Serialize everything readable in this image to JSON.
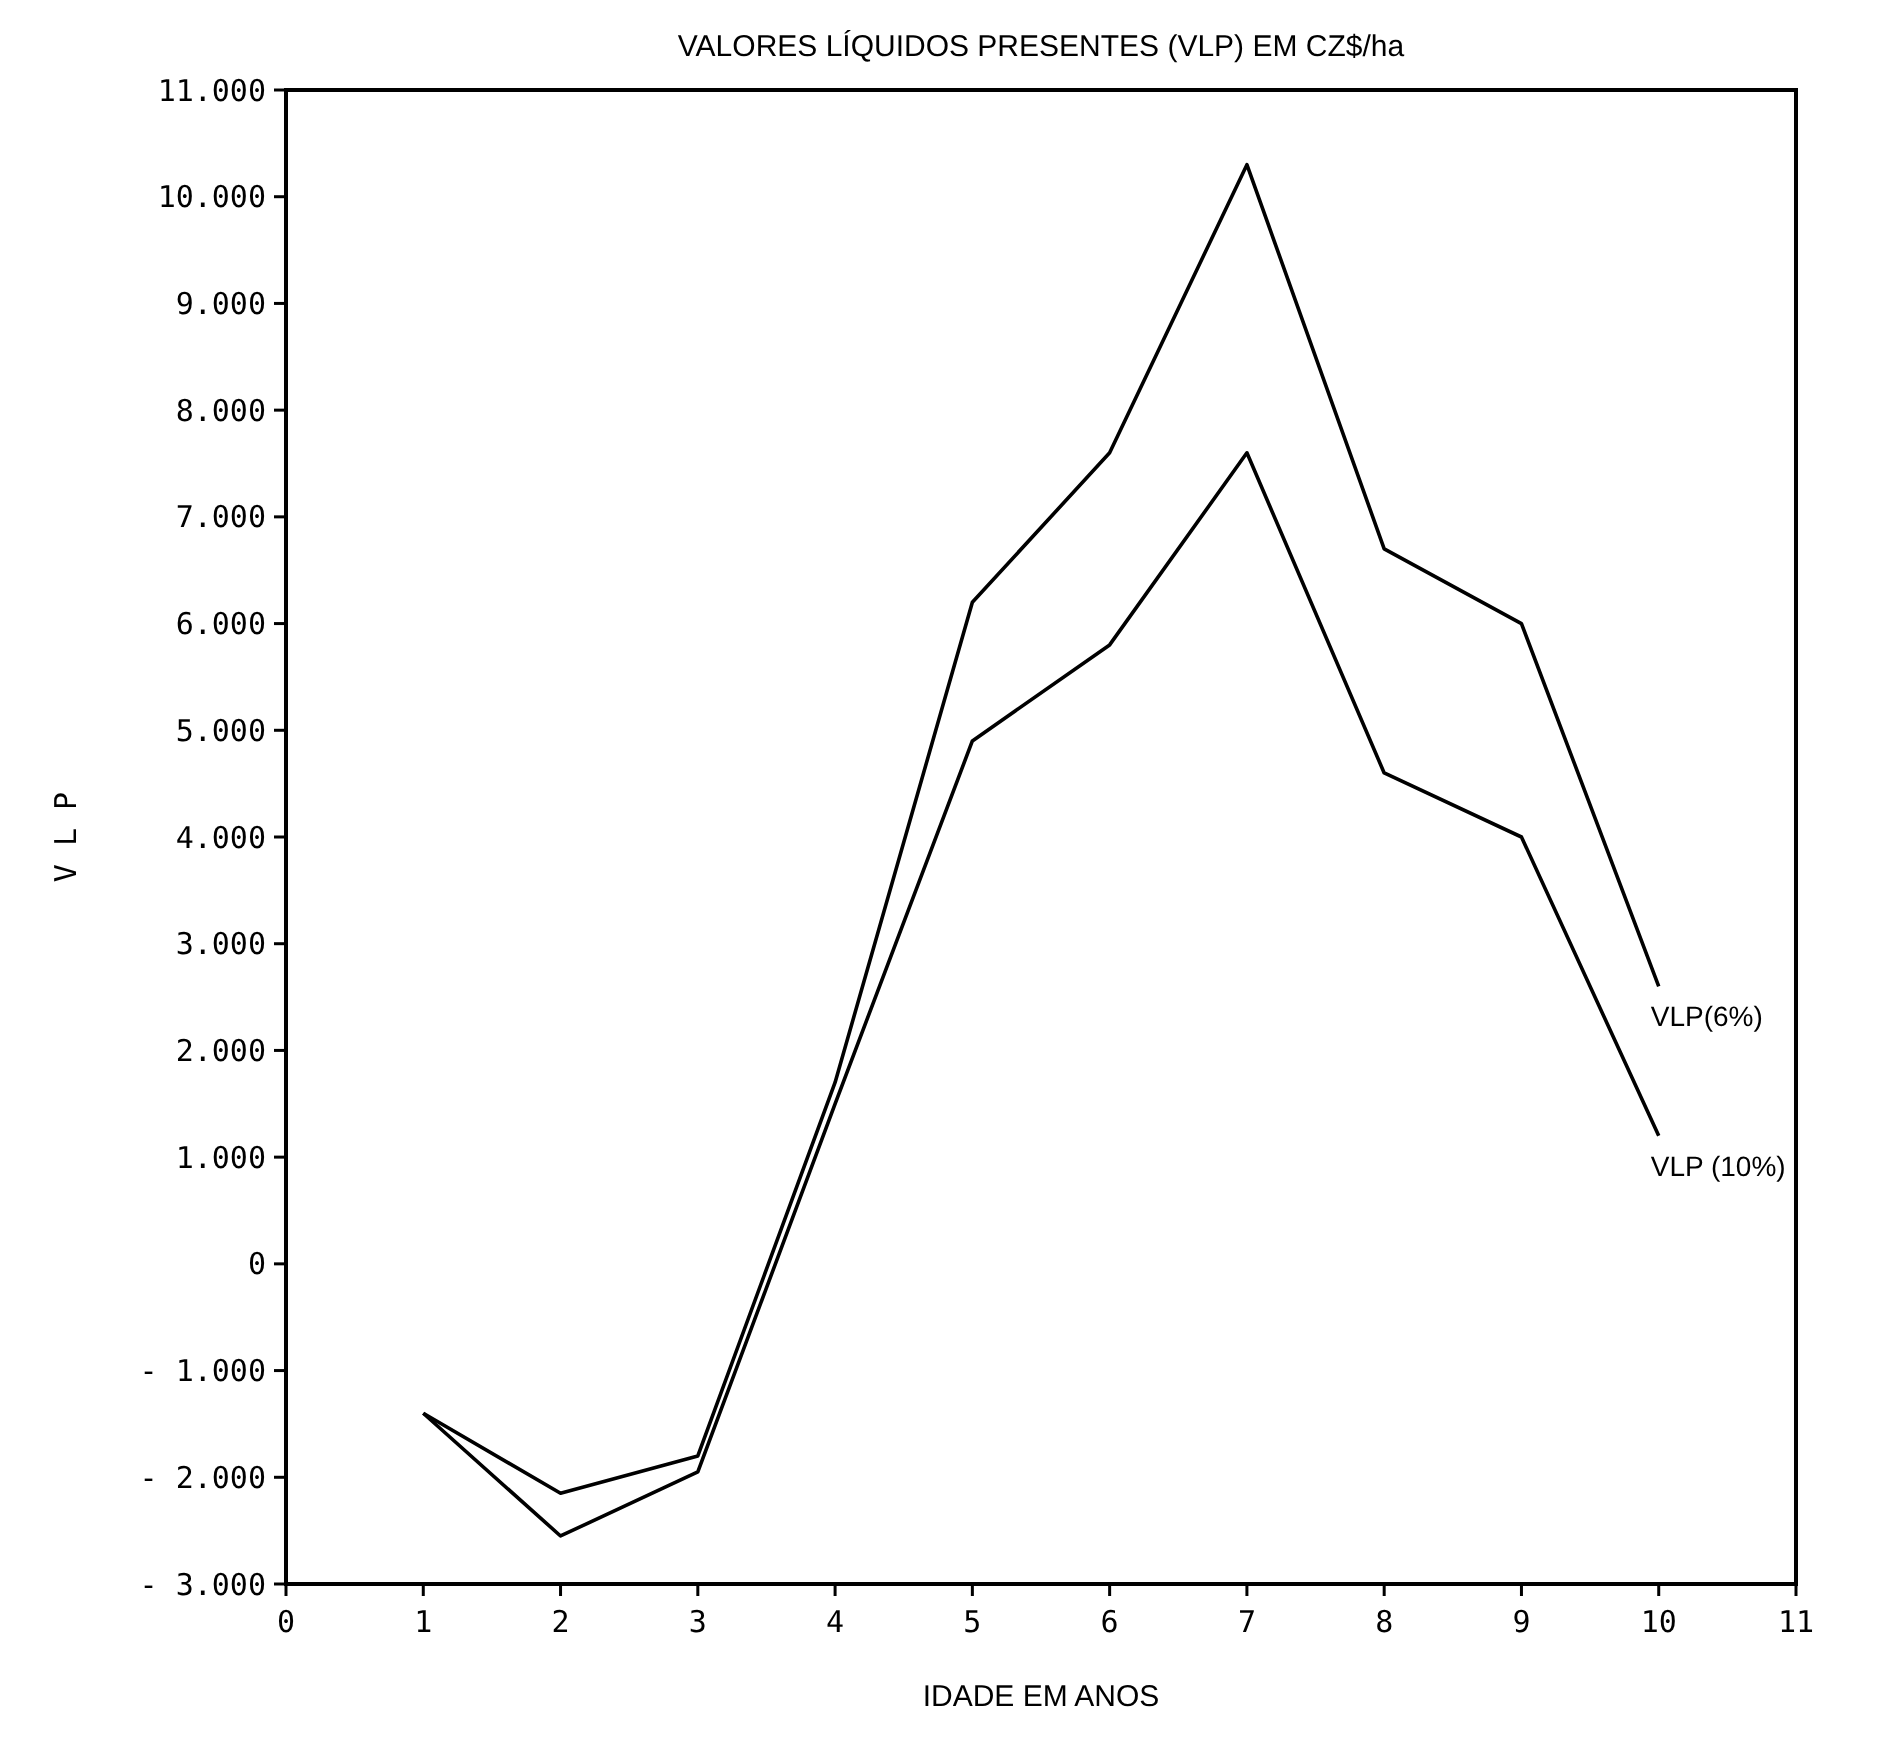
{
  "chart_data": {
    "type": "line",
    "title": "VALORES LÍQUIDOS PRESENTES (VLP) EM CZ$/ha",
    "xlabel": "IDADE EM ANOS",
    "ylabel": "V L P",
    "x": [
      1,
      2,
      3,
      4,
      5,
      6,
      7,
      8,
      9,
      10
    ],
    "series": [
      {
        "name": "VLP(6%)",
        "color": "#000000",
        "values": [
          -1400,
          -2150,
          -1800,
          1700,
          6200,
          7600,
          10300,
          6700,
          6000,
          2600
        ]
      },
      {
        "name": "VLP (10%)",
        "color": "#000000",
        "values": [
          -1400,
          -2550,
          -1950,
          1500,
          4900,
          5800,
          7600,
          4600,
          4000,
          1200
        ]
      }
    ],
    "xlim": [
      0,
      11
    ],
    "xticks": [
      0,
      1,
      2,
      3,
      4,
      5,
      6,
      7,
      8,
      9,
      10,
      11
    ],
    "ylim": [
      -3000,
      11000
    ],
    "yticks": [
      {
        "value": -3000,
        "label": "- 3.000"
      },
      {
        "value": -2000,
        "label": "- 2.000"
      },
      {
        "value": -1000,
        "label": "- 1.000"
      },
      0,
      {
        "value": 1000,
        "label": "1.000"
      },
      {
        "value": 2000,
        "label": "2.000"
      },
      {
        "value": 3000,
        "label": "3.000"
      },
      {
        "value": 4000,
        "label": "4.000"
      },
      {
        "value": 5000,
        "label": "5.000"
      },
      {
        "value": 6000,
        "label": "6.000"
      },
      {
        "value": 7000,
        "label": "7.000"
      },
      {
        "value": 8000,
        "label": "8.000"
      },
      {
        "value": 9000,
        "label": "9.000"
      },
      {
        "value": 10000,
        "label": "10.000"
      },
      {
        "value": 11000,
        "label": "11.000"
      }
    ],
    "grid": false,
    "marker": "none",
    "line_style": "solid"
  }
}
